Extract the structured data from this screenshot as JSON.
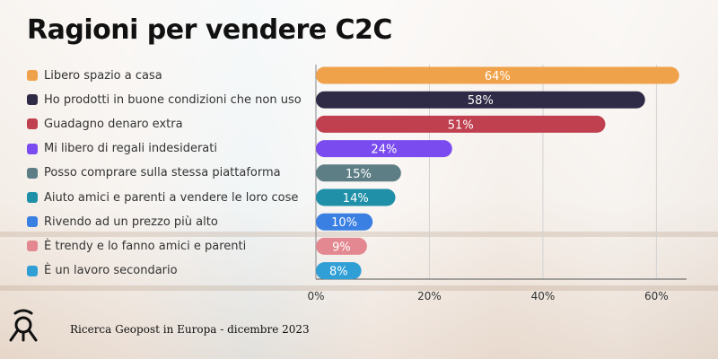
{
  "title": "Ragioni per vendere C2C",
  "source": "Ricerca Geopost in Europa - dicembre 2023",
  "chart_data": {
    "type": "bar",
    "orientation": "horizontal",
    "title": "Ragioni per vendere C2C",
    "xlabel": "",
    "ylabel": "",
    "xlim": [
      0,
      65
    ],
    "x_ticks": [
      "0%",
      "20%",
      "40%",
      "60%"
    ],
    "x_tick_values": [
      0,
      20,
      40,
      60
    ],
    "grid": true,
    "legend": "left",
    "categories": [
      "Libero spazio a casa",
      "Ho prodotti in buone condizioni che non uso",
      "Guadagno denaro extra",
      "Mi libero di regali indesiderati",
      "Posso comprare sulla stessa piattaforma",
      "Aiuto amici e parenti a vendere le loro cose",
      "Rivendo ad un prezzo più alto",
      "È trendy e lo fanno amici e parenti",
      "È un lavoro secondario"
    ],
    "values": [
      64,
      58,
      51,
      24,
      15,
      14,
      10,
      9,
      8
    ],
    "value_labels": [
      "64%",
      "58%",
      "51%",
      "24%",
      "15%",
      "14%",
      "10%",
      "9%",
      "8%"
    ],
    "colors": [
      "#f0a24a",
      "#2f2a45",
      "#c0404f",
      "#7a4cf0",
      "#5e7e86",
      "#1f90a8",
      "#3a7fe2",
      "#e38890",
      "#2f9fd6"
    ]
  }
}
